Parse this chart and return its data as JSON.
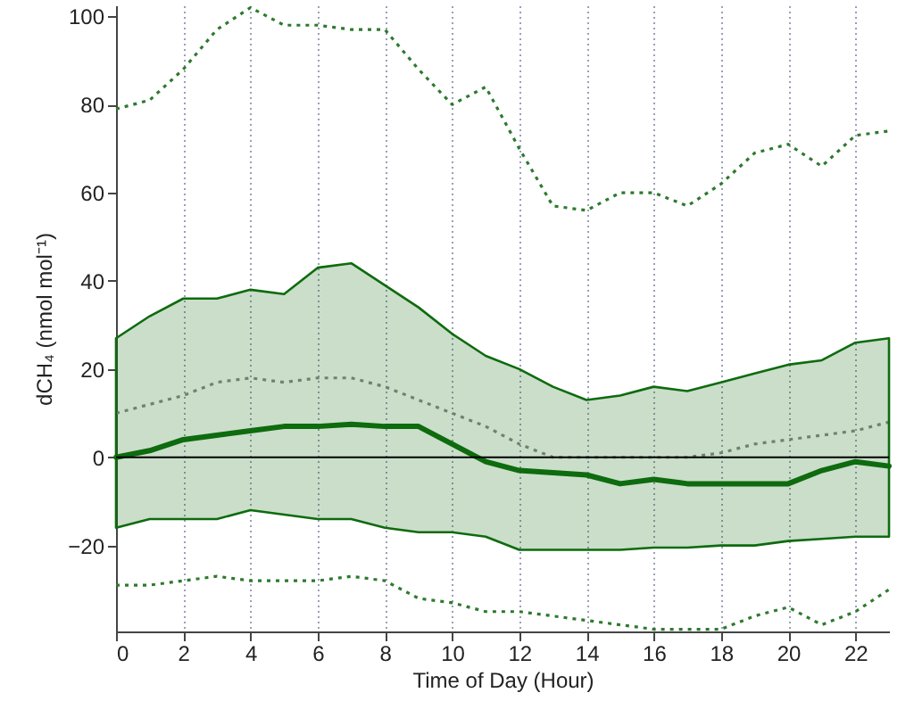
{
  "chart_data": {
    "type": "line",
    "xlabel": "Time of Day (Hour)",
    "ylabel": "dCH₄ (nmol mol⁻¹)",
    "x": [
      0,
      1,
      2,
      3,
      4,
      5,
      6,
      7,
      8,
      9,
      10,
      11,
      12,
      13,
      14,
      15,
      16,
      17,
      18,
      19,
      20,
      21,
      22,
      23
    ],
    "series": [
      {
        "color": "#2e7a2e",
        "line_style": "dotted",
        "values": [
          79,
          81,
          88,
          97,
          102,
          98,
          98,
          97,
          97,
          88,
          80,
          84,
          70,
          57,
          56,
          60,
          60,
          57,
          62,
          69,
          71,
          66,
          73,
          74
        ]
      },
      {
        "color": "#2e7a2e",
        "line_style": "dotted",
        "values": [
          -29,
          -29,
          -28,
          -27,
          -28,
          -28,
          -28,
          -27,
          -28,
          -32,
          -33,
          -35,
          -35,
          -36,
          -37,
          -38,
          -39,
          -39,
          -39,
          -36,
          -34,
          -38,
          -35,
          -30
        ]
      },
      {
        "color": "#8a8a8a",
        "line_style": "dotted",
        "values": [
          10,
          12,
          14,
          17,
          18,
          17,
          18,
          18,
          16,
          13,
          10,
          7,
          3,
          0,
          0,
          0,
          0,
          0,
          1,
          3,
          4,
          5,
          6,
          8
        ]
      },
      {
        "color": "#0e6b0e",
        "line_style": "solid",
        "values": [
          0,
          1.5,
          4,
          5,
          6,
          7,
          7,
          7.5,
          7,
          7,
          3,
          -1,
          -3,
          -3.5,
          -4,
          -6,
          -5,
          -6,
          -6,
          -6,
          -6,
          -3,
          -1,
          -2
        ],
        "lower": [
          -16,
          -14,
          -14,
          -14,
          -12,
          -13,
          -14,
          -14,
          -16,
          -17,
          -17,
          -18,
          -21,
          -21,
          -21,
          -21,
          -20.5,
          -20.5,
          -20,
          -20,
          -19,
          -18.5,
          -18,
          -18
        ],
        "upper": [
          27,
          32,
          36,
          36,
          38,
          37,
          43,
          44,
          39,
          34,
          28,
          23,
          20,
          16,
          13,
          14,
          16,
          15,
          17,
          19,
          21,
          22,
          26,
          27
        ]
      }
    ],
    "xlim": [
      0,
      23
    ],
    "xticks": [
      0,
      2,
      4,
      6,
      8,
      10,
      12,
      14,
      16,
      18,
      20,
      22
    ],
    "ylim": [
      -39.5,
      102.5
    ],
    "yticks": [
      -20,
      0,
      20,
      40,
      60,
      80,
      100
    ],
    "ref_lines": [
      {
        "axis": "y",
        "value": 0,
        "color": "#000000"
      }
    ],
    "grid": "x",
    "marker": "none"
  }
}
